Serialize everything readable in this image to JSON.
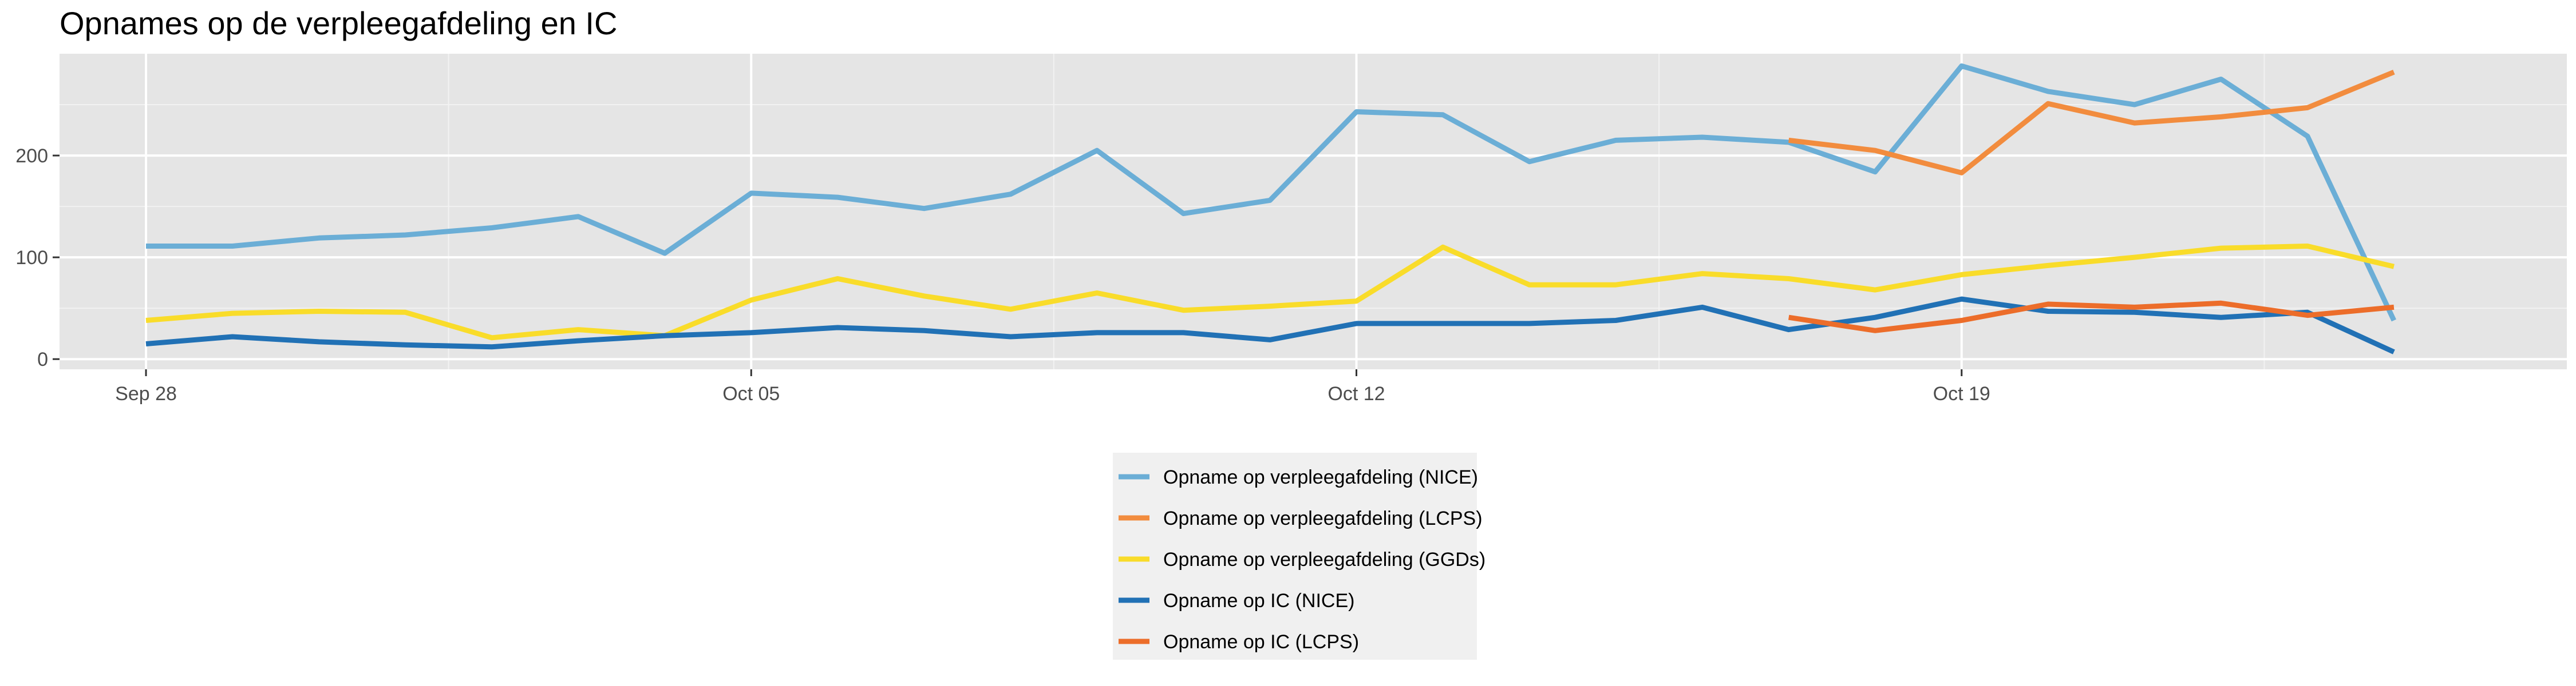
{
  "chart_data": {
    "type": "line",
    "title": "Opnames op de verpleegafdeling en IC",
    "xlabel": "",
    "ylabel": "",
    "x_ticks": [
      {
        "date": "2020-09-28",
        "label": "Sep 28"
      },
      {
        "date": "2020-10-05",
        "label": "Oct 05"
      },
      {
        "date": "2020-10-12",
        "label": "Oct 12"
      },
      {
        "date": "2020-10-19",
        "label": "Oct 19"
      }
    ],
    "xlim": [
      "2020-09-27",
      "2020-10-26"
    ],
    "y_ticks": [
      0,
      100,
      200
    ],
    "ylim": [
      -10,
      300
    ],
    "grid": true,
    "legend_position": "bottom",
    "series": [
      {
        "name": "Opname op verpleegafdeling (NICE)",
        "color": "#6baed6",
        "x": [
          "2020-09-28",
          "2020-09-29",
          "2020-09-30",
          "2020-10-01",
          "2020-10-02",
          "2020-10-03",
          "2020-10-04",
          "2020-10-05",
          "2020-10-06",
          "2020-10-07",
          "2020-10-08",
          "2020-10-09",
          "2020-10-10",
          "2020-10-11",
          "2020-10-12",
          "2020-10-13",
          "2020-10-14",
          "2020-10-15",
          "2020-10-16",
          "2020-10-17",
          "2020-10-18",
          "2020-10-19",
          "2020-10-20",
          "2020-10-21",
          "2020-10-22",
          "2020-10-23",
          "2020-10-24"
        ],
        "y": [
          111,
          111,
          119,
          122,
          129,
          140,
          104,
          163,
          159,
          148,
          162,
          205,
          143,
          156,
          243,
          240,
          194,
          215,
          218,
          213,
          184,
          288,
          263,
          250,
          275,
          219,
          38
        ]
      },
      {
        "name": "Opname op verpleegafdeling (LCPS)",
        "color": "#f28c3e",
        "x": [
          "2020-10-17",
          "2020-10-18",
          "2020-10-19",
          "2020-10-20",
          "2020-10-21",
          "2020-10-22",
          "2020-10-23",
          "2020-10-24"
        ],
        "y": [
          215,
          205,
          183,
          251,
          232,
          238,
          247,
          282
        ]
      },
      {
        "name": "Opname op verpleegafdeling (GGDs)",
        "color": "#f9dc2a",
        "x": [
          "2020-09-28",
          "2020-09-29",
          "2020-09-30",
          "2020-10-01",
          "2020-10-02",
          "2020-10-03",
          "2020-10-04",
          "2020-10-05",
          "2020-10-06",
          "2020-10-07",
          "2020-10-08",
          "2020-10-09",
          "2020-10-10",
          "2020-10-11",
          "2020-10-12",
          "2020-10-13",
          "2020-10-14",
          "2020-10-15",
          "2020-10-16",
          "2020-10-17",
          "2020-10-18",
          "2020-10-19",
          "2020-10-20",
          "2020-10-21",
          "2020-10-22",
          "2020-10-23",
          "2020-10-24"
        ],
        "y": [
          38,
          45,
          47,
          46,
          21,
          29,
          23,
          58,
          79,
          62,
          49,
          65,
          48,
          52,
          57,
          110,
          73,
          73,
          84,
          79,
          68,
          83,
          92,
          100,
          109,
          111,
          91
        ]
      },
      {
        "name": "Opname op IC (NICE)",
        "color": "#2171b5",
        "x": [
          "2020-09-28",
          "2020-09-29",
          "2020-09-30",
          "2020-10-01",
          "2020-10-02",
          "2020-10-03",
          "2020-10-04",
          "2020-10-05",
          "2020-10-06",
          "2020-10-07",
          "2020-10-08",
          "2020-10-09",
          "2020-10-10",
          "2020-10-11",
          "2020-10-12",
          "2020-10-13",
          "2020-10-14",
          "2020-10-15",
          "2020-10-16",
          "2020-10-17",
          "2020-10-18",
          "2020-10-19",
          "2020-10-20",
          "2020-10-21",
          "2020-10-22",
          "2020-10-23",
          "2020-10-24"
        ],
        "y": [
          15,
          22,
          17,
          14,
          12,
          18,
          23,
          26,
          31,
          28,
          22,
          26,
          26,
          19,
          35,
          35,
          35,
          38,
          51,
          29,
          41,
          59,
          47,
          46,
          41,
          46,
          7
        ]
      },
      {
        "name": "Opname op IC (LCPS)",
        "color": "#ec6d2a",
        "x": [
          "2020-10-17",
          "2020-10-18",
          "2020-10-19",
          "2020-10-20",
          "2020-10-21",
          "2020-10-22",
          "2020-10-23",
          "2020-10-24"
        ],
        "y": [
          41,
          28,
          38,
          54,
          51,
          55,
          43,
          51
        ]
      }
    ]
  }
}
